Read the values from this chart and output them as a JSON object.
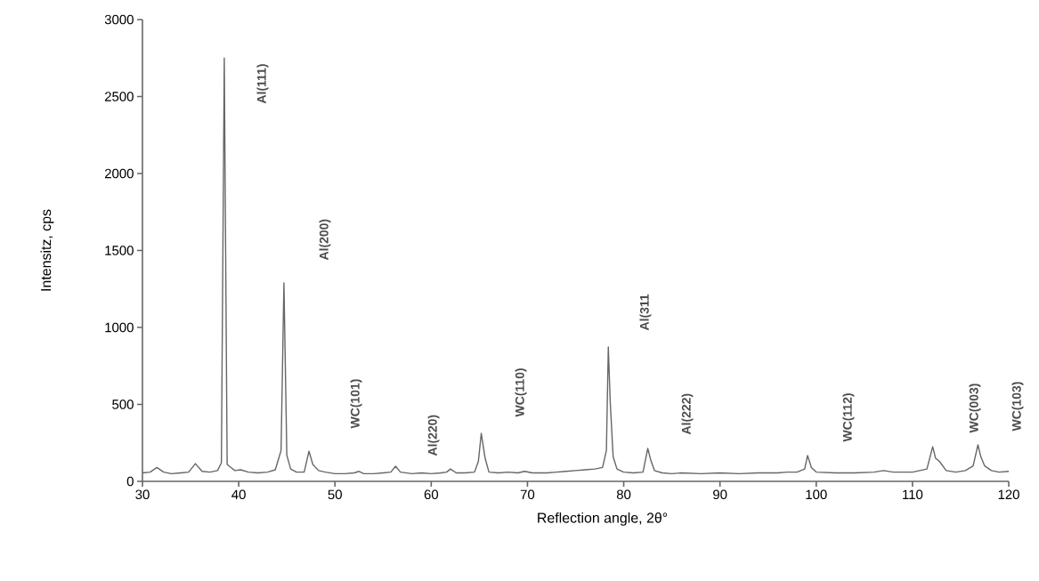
{
  "chart_data": {
    "type": "line",
    "xlabel": "Reflection angle, 2θ°",
    "ylabel": "Intensitz, cps",
    "xlim": [
      30,
      120
    ],
    "ylim": [
      0,
      3000
    ],
    "xticks": [
      30,
      40,
      50,
      60,
      70,
      80,
      90,
      100,
      110,
      120
    ],
    "yticks": [
      0,
      500,
      1000,
      1500,
      2000,
      2500,
      3000
    ],
    "grid": false,
    "marker": "none",
    "line_style": "solid",
    "annotations": [
      "Al(111)",
      "Al(200)",
      "WC(101)",
      "Al(220)",
      "WC(110)",
      "Al(311",
      "Al(222)",
      "WC(112)",
      "WC(003)",
      "WC(103)"
    ],
    "series": [
      {
        "color": "#666666",
        "x": [
          30,
          30.8,
          31.5,
          32.2,
          33,
          34,
          34.8,
          35.5,
          36.2,
          37,
          37.8,
          38.2,
          38.5,
          38.8,
          39.2,
          39.6,
          40.2,
          41,
          42,
          43,
          43.8,
          44.4,
          44.7,
          45,
          45.4,
          46,
          46.8,
          47.3,
          47.7,
          48.3,
          49,
          50,
          51,
          52,
          52.5,
          53,
          54,
          55,
          55.8,
          56.3,
          56.8,
          58,
          59,
          60,
          61,
          61.6,
          62,
          62.6,
          63.5,
          64.5,
          64.9,
          65.2,
          65.6,
          66,
          67,
          68,
          69,
          69.7,
          70.5,
          72,
          73,
          74,
          75,
          76,
          77,
          77.8,
          78.2,
          78.4,
          78.6,
          78.9,
          79.3,
          80,
          81,
          82,
          82.5,
          82.8,
          83.2,
          84,
          85,
          86,
          88,
          90,
          92,
          94,
          96,
          97,
          98,
          98.8,
          99.1,
          99.5,
          100,
          102,
          104,
          106,
          107,
          108,
          110,
          111.5,
          112.1,
          112.4,
          112.8,
          113.5,
          114.5,
          115.5,
          116.3,
          116.8,
          117.1,
          117.5,
          118.2,
          119,
          120
        ],
        "values": [
          55,
          60,
          90,
          60,
          50,
          55,
          60,
          115,
          65,
          60,
          70,
          120,
          2750,
          110,
          90,
          70,
          75,
          60,
          55,
          60,
          75,
          200,
          1290,
          170,
          80,
          60,
          60,
          196,
          110,
          70,
          60,
          50,
          50,
          55,
          65,
          50,
          50,
          55,
          60,
          98,
          60,
          50,
          55,
          50,
          55,
          60,
          80,
          55,
          55,
          60,
          130,
          312,
          150,
          60,
          55,
          60,
          55,
          65,
          55,
          55,
          60,
          65,
          70,
          75,
          80,
          90,
          200,
          873,
          514,
          160,
          80,
          60,
          55,
          60,
          214,
          140,
          70,
          55,
          50,
          55,
          50,
          55,
          50,
          55,
          55,
          60,
          60,
          80,
          168,
          90,
          60,
          55,
          55,
          60,
          70,
          60,
          60,
          80,
          225,
          150,
          130,
          70,
          60,
          70,
          100,
          237,
          160,
          100,
          70,
          60,
          65
        ]
      }
    ]
  }
}
